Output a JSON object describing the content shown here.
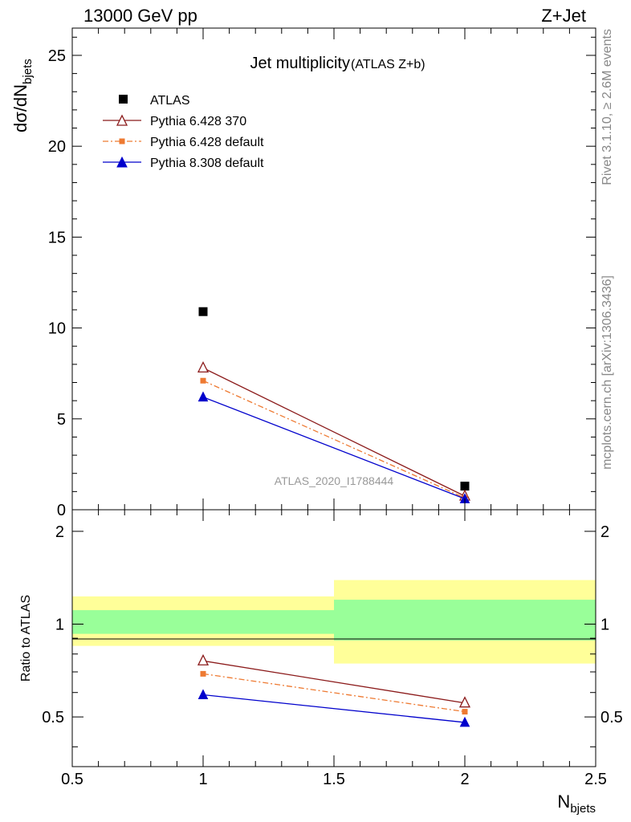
{
  "header": {
    "left": "13000 GeV pp",
    "right": "Z+Jet"
  },
  "side_labels": {
    "rivet": "Rivet 3.1.10, ≥ 2.6M events",
    "mcplots": "mcplots.cern.ch [arXiv:1306.3436]"
  },
  "chart_data": [
    {
      "type": "scatter",
      "title": "Jet multiplicity",
      "subtitle": "(ATLAS Z+b)",
      "watermark": "ATLAS_2020_I1788444",
      "ylabel_main": "dσ/dN",
      "ylabel_sub": "bjets",
      "xlim": [
        0.5,
        2.5
      ],
      "ylim": [
        0,
        26.5
      ],
      "yticks": [
        0,
        5,
        10,
        15,
        20,
        25
      ],
      "ytick_labels": [
        "0",
        "5",
        "10",
        "15",
        "20",
        "25"
      ],
      "legend_position": "top-left",
      "series": [
        {
          "name": "ATLAS",
          "color": "#000000",
          "marker": "square",
          "x": [
            1,
            2
          ],
          "y": [
            10.9,
            1.3
          ]
        },
        {
          "name": "Pythia 6.428 370",
          "color": "#8b1a1a",
          "marker": "open-triangle",
          "line": "solid",
          "x": [
            1,
            2
          ],
          "y": [
            7.8,
            0.75
          ]
        },
        {
          "name": "Pythia 6.428 default",
          "color": "#ee7a32",
          "marker": "small-square",
          "line": "dashdot",
          "x": [
            1,
            2
          ],
          "y": [
            7.1,
            0.65
          ]
        },
        {
          "name": "Pythia 8.308 default",
          "color": "#0000cc",
          "marker": "triangle",
          "line": "solid",
          "x": [
            1,
            2
          ],
          "y": [
            6.2,
            0.6
          ]
        }
      ]
    },
    {
      "type": "scatter",
      "ylabel": "Ratio to ATLAS",
      "xlabel_main": "N",
      "xlabel_sub": "bjets",
      "xlim": [
        0.5,
        2.5
      ],
      "ylim": [
        0.345,
        2.35
      ],
      "xticks": [
        0.5,
        1,
        1.5,
        2,
        2.5
      ],
      "xtick_labels": [
        "0.5",
        "1",
        "1.5",
        "2",
        "2.5"
      ],
      "yticks": [
        0.5,
        1,
        2
      ],
      "ytick_labels": [
        "0.5",
        "1",
        "2"
      ],
      "bands": [
        {
          "x": [
            0.5,
            1.5
          ],
          "yellow": [
            0.85,
            1.23
          ],
          "green": [
            0.93,
            1.11
          ]
        },
        {
          "x": [
            1.5,
            2.5
          ],
          "yellow": [
            0.745,
            1.39
          ],
          "green": [
            0.885,
            1.2
          ]
        }
      ],
      "series": [
        {
          "name": "Pythia 6.428 370",
          "color": "#8b1a1a",
          "marker": "open-triangle",
          "line": "solid",
          "x": [
            1,
            2
          ],
          "y": [
            0.76,
            0.555
          ]
        },
        {
          "name": "Pythia 6.428 default",
          "color": "#ee7a32",
          "marker": "small-square",
          "line": "dashdot",
          "x": [
            1,
            2
          ],
          "y": [
            0.69,
            0.52
          ]
        },
        {
          "name": "Pythia 8.308 default",
          "color": "#0000cc",
          "marker": "triangle",
          "line": "solid",
          "x": [
            1,
            2
          ],
          "y": [
            0.59,
            0.48
          ]
        }
      ]
    }
  ]
}
